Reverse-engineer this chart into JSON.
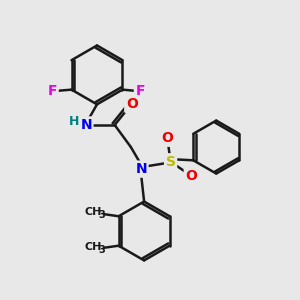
{
  "bg_color": "#e8e8e8",
  "bond_color": "#1a1a1a",
  "bond_width": 1.8,
  "atom_colors": {
    "F": "#ee00ee",
    "N": "#0000ee",
    "H": "#008080",
    "O": "#ee0000",
    "S": "#bbbb00",
    "C": "#1a1a1a"
  },
  "font_size_atom": 10,
  "fig_size": [
    3.0,
    3.0
  ],
  "dpi": 100
}
